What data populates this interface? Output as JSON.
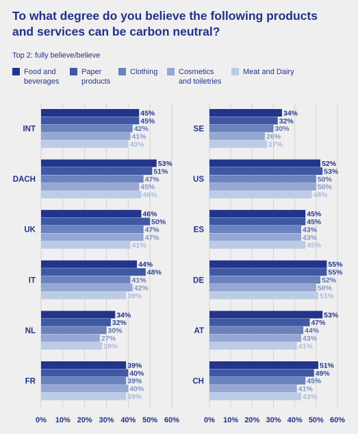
{
  "title": "To what degree do you believe the following products and services can be carbon neutral?",
  "subtitle": "Top 2: fully believe/believe",
  "colors": [
    "#22348c",
    "#3f58a4",
    "#6a82bd",
    "#95a7d2",
    "#bccbe6"
  ],
  "legend": [
    {
      "label": "Food and\nbeverages"
    },
    {
      "label": "Paper\nproducts"
    },
    {
      "label": "Clothing"
    },
    {
      "label": "Cosmetics\nand toiletries"
    },
    {
      "label": "Meat and Dairy"
    }
  ],
  "chart_data": {
    "type": "bar",
    "orientation": "horizontal",
    "series": [
      {
        "name": "Food and beverages"
      },
      {
        "name": "Paper products"
      },
      {
        "name": "Clothing"
      },
      {
        "name": "Cosmetics and toiletries"
      },
      {
        "name": "Meat and Dairy"
      }
    ],
    "xlim": [
      0,
      60
    ],
    "xticks": [
      "0%",
      "10%",
      "20%",
      "30%",
      "40%",
      "50%",
      "60%"
    ],
    "grid": true,
    "value_suffix": "%",
    "panels": [
      {
        "groups": [
          {
            "label": "INT",
            "values": [
              45,
              45,
              42,
              41,
              40
            ]
          },
          {
            "label": "DACH",
            "values": [
              53,
              51,
              47,
              45,
              46
            ]
          },
          {
            "label": "UK",
            "values": [
              46,
              50,
              47,
              47,
              41
            ]
          },
          {
            "label": "IT",
            "values": [
              44,
              48,
              41,
              42,
              39
            ]
          },
          {
            "label": "NL",
            "values": [
              34,
              32,
              30,
              27,
              28
            ]
          },
          {
            "label": "FR",
            "values": [
              39,
              40,
              39,
              40,
              39
            ]
          }
        ]
      },
      {
        "groups": [
          {
            "label": "SE",
            "values": [
              34,
              32,
              30,
              26,
              27
            ]
          },
          {
            "label": "US",
            "values": [
              52,
              53,
              50,
              50,
              48
            ]
          },
          {
            "label": "ES",
            "values": [
              45,
              45,
              43,
              43,
              45
            ]
          },
          {
            "label": "DE",
            "values": [
              55,
              55,
              52,
              50,
              51
            ]
          },
          {
            "label": "AT",
            "values": [
              53,
              47,
              44,
              43,
              41
            ]
          },
          {
            "label": "CH",
            "values": [
              51,
              49,
              45,
              41,
              43
            ]
          }
        ]
      }
    ]
  }
}
